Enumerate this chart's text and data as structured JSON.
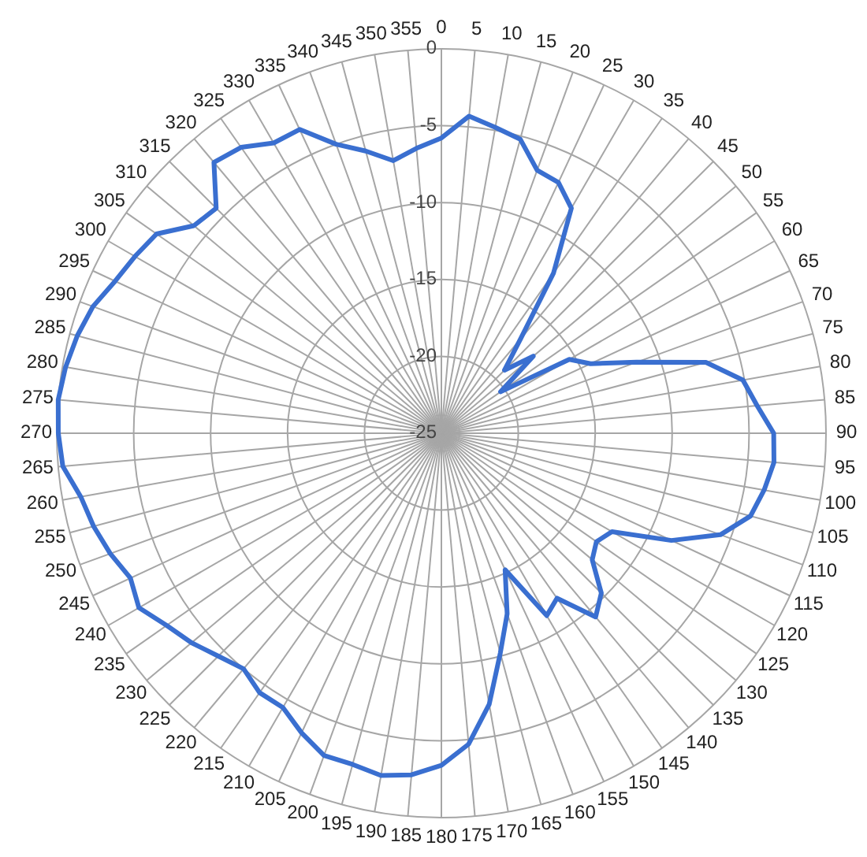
{
  "chart_data": {
    "type": "radar",
    "categories": [
      "0",
      "5",
      "10",
      "15",
      "20",
      "25",
      "30",
      "35",
      "40",
      "45",
      "50",
      "55",
      "60",
      "65",
      "70",
      "75",
      "80",
      "85",
      "90",
      "95",
      "100",
      "105",
      "110",
      "115",
      "120",
      "125",
      "130",
      "135",
      "140",
      "145",
      "150",
      "155",
      "160",
      "165",
      "170",
      "175",
      "180",
      "185",
      "190",
      "195",
      "200",
      "205",
      "210",
      "215",
      "220",
      "225",
      "230",
      "235",
      "240",
      "245",
      "250",
      "255",
      "260",
      "265",
      "270",
      "275",
      "280",
      "285",
      "290",
      "295",
      "300",
      "305",
      "310",
      "315",
      "320",
      "325",
      "330",
      "335",
      "340",
      "345",
      "350",
      "355"
    ],
    "series": [
      {
        "color": "#3a6fd0",
        "values": [
          -5.8,
          -4.3,
          -4.8,
          -5.2,
          -6.8,
          -7.0,
          -8.1,
          -12.3,
          -17,
          -19.2,
          -17.2,
          -20.3,
          -15.4,
          -14.3,
          -11.5,
          -7.2,
          -5.1,
          -4.4,
          -3.4,
          -3.3,
          -3.7,
          -4.2,
          -5.7,
          -8.5,
          -12.2,
          -12.7,
          -12.2,
          -10.3,
          -9.4,
          -11.9,
          -11.3,
          -15.2,
          -12.5,
          -10.2,
          -7.1,
          -4.7,
          -3.4,
          -2.7,
          -2.4,
          -2.7,
          -2.7,
          -3.5,
          -4.4,
          -4.4,
          -5.0,
          -4.5,
          -3.8,
          -3.2,
          -2.3,
          -2.7,
          -2.1,
          -1.6,
          -1.2,
          -0.3,
          -0.1,
          0,
          -0.2,
          -0.5,
          -0.9,
          -1.6,
          -2.0,
          -2.4,
          -4.0,
          -4.3,
          -2.0,
          -2.3,
          -3.2,
          -3.2,
          -5.0,
          -6.0,
          -7.0,
          -6.4
        ]
      }
    ],
    "ylim": [
      -25,
      0
    ],
    "yticks": [
      -25,
      -20,
      -15,
      -10,
      -5,
      0
    ],
    "grid": true,
    "marker": "none",
    "line_style": "solid"
  }
}
